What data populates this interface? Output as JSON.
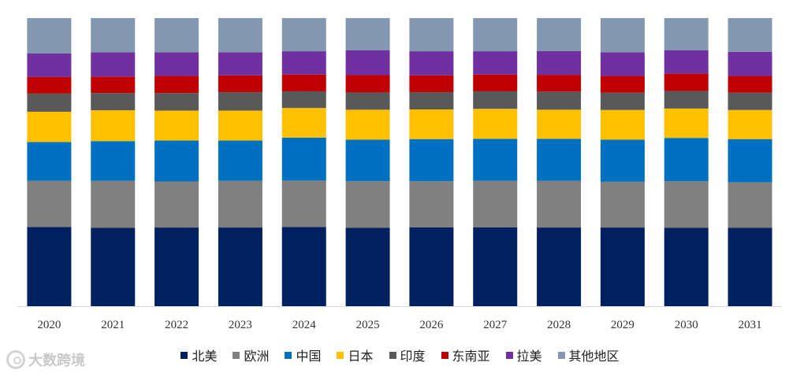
{
  "chart_data": {
    "type": "bar",
    "stacked": true,
    "percent": true,
    "title": "",
    "xlabel": "",
    "ylabel": "",
    "ylim": [
      0,
      100
    ],
    "grid": false,
    "legend_position": "bottom",
    "categories": [
      "2020",
      "2021",
      "2022",
      "2023",
      "2024",
      "2025",
      "2026",
      "2027",
      "2028",
      "2029",
      "2030",
      "2031"
    ],
    "series": [
      {
        "name": "北美",
        "color": "#002060",
        "values": [
          27.5,
          27.2,
          27.3,
          27.3,
          27.5,
          27.2,
          27.4,
          27.4,
          27.3,
          27.3,
          27.2,
          27.2
        ]
      },
      {
        "name": "欧洲",
        "color": "#808080",
        "values": [
          16.0,
          16.3,
          16.0,
          16.2,
          16.1,
          16.2,
          16.0,
          16.1,
          16.2,
          15.9,
          16.2,
          15.8
        ]
      },
      {
        "name": "中国",
        "color": "#0070C0",
        "values": [
          13.5,
          13.8,
          14.2,
          14.0,
          14.9,
          14.4,
          14.6,
          14.6,
          14.6,
          14.6,
          15.0,
          15.0
        ]
      },
      {
        "name": "日本",
        "color": "#FFC000",
        "values": [
          10.5,
          10.7,
          10.4,
          10.4,
          10.3,
          10.4,
          10.3,
          10.4,
          10.1,
          10.3,
          10.2,
          10.1
        ]
      },
      {
        "name": "印度",
        "color": "#595959",
        "values": [
          6.3,
          6.0,
          6.1,
          6.4,
          5.8,
          6.0,
          6.0,
          6.1,
          6.3,
          6.0,
          6.1,
          6.0
        ]
      },
      {
        "name": "东南亚",
        "color": "#C00000",
        "values": [
          5.8,
          5.7,
          5.9,
          5.8,
          5.8,
          6.0,
          5.8,
          5.8,
          5.8,
          5.8,
          6.0,
          5.8
        ]
      },
      {
        "name": "拉美",
        "color": "#7030A0",
        "values": [
          8.1,
          8.4,
          8.2,
          8.0,
          8.1,
          8.6,
          8.4,
          8.1,
          8.3,
          8.2,
          8.1,
          8.4
        ]
      },
      {
        "name": "其他地区",
        "color": "#8497B0",
        "values": [
          12.3,
          11.9,
          11.9,
          11.9,
          11.5,
          11.2,
          11.5,
          11.5,
          11.4,
          11.9,
          11.2,
          11.7
        ]
      }
    ]
  },
  "watermark": {
    "text": "大数跨境"
  }
}
